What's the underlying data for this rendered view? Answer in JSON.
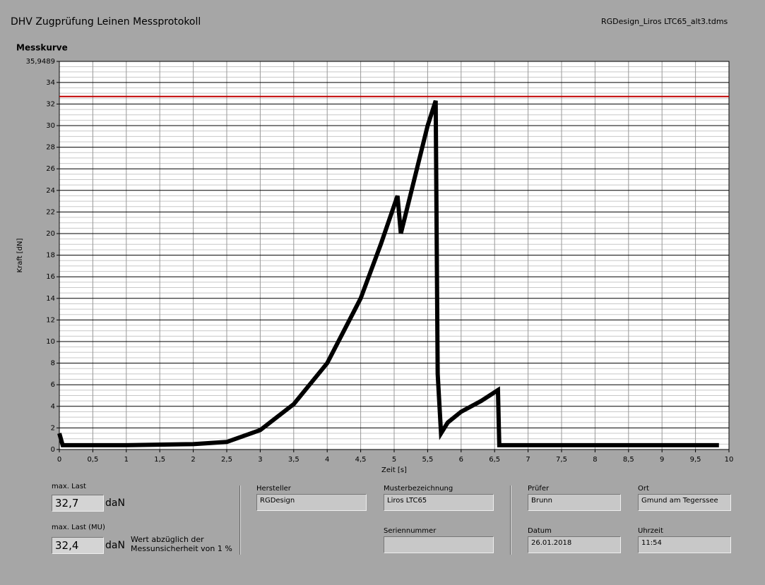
{
  "header": {
    "title": "DHV Zugprüfung Leinen Messprotokoll",
    "filename": "RGDesign_Liros LTC65_alt3.tdms"
  },
  "chart_data": {
    "type": "line",
    "title": "Messkurve",
    "x_label": "Zeit [s]",
    "y_label": "Kraft [dN]",
    "xlim": [
      0,
      10
    ],
    "ylim": [
      0,
      35.9489
    ],
    "xticks": [
      0,
      {
        "value": 0.5,
        "label": "0,5"
      },
      1,
      {
        "value": 1.5,
        "label": "1,5"
      },
      2,
      {
        "value": 2.5,
        "label": "2,5"
      },
      3,
      {
        "value": 3.5,
        "label": "3,5"
      },
      4,
      {
        "value": 4.5,
        "label": "4,5"
      },
      5,
      {
        "value": 5.5,
        "label": "5,5"
      },
      6,
      {
        "value": 6.5,
        "label": "6,5"
      },
      7,
      {
        "value": 7.5,
        "label": "7,5"
      },
      8,
      {
        "value": 8.5,
        "label": "8,5"
      },
      9,
      {
        "value": 9.5,
        "label": "9,5"
      },
      10
    ],
    "yticks": [
      0,
      2,
      4,
      6,
      8,
      10,
      12,
      14,
      16,
      18,
      20,
      22,
      24,
      26,
      28,
      30,
      32,
      34,
      {
        "value": 35.9489,
        "label": "35,9489"
      }
    ],
    "grid": true,
    "color": "#000000",
    "x": [
      0,
      0.05,
      1,
      2,
      2.5,
      3,
      3.5,
      4,
      4.5,
      4.8,
      5.05,
      5.1,
      5.3,
      5.5,
      5.62,
      5.65,
      5.7,
      5.8,
      6,
      6.3,
      6.55,
      6.57,
      7,
      8,
      9,
      9.85
    ],
    "values": [
      1.5,
      0.4,
      0.4,
      0.5,
      0.7,
      1.8,
      4.2,
      8,
      14,
      19,
      23.5,
      20,
      25,
      30,
      32.3,
      7,
      1.5,
      2.5,
      3.5,
      4.5,
      5.5,
      0.4,
      0.4,
      0.4,
      0.4,
      0.4
    ],
    "reference_line": {
      "value": 32.7,
      "color": "#c00000"
    }
  },
  "results": {
    "max_load": {
      "label": "max. Last",
      "value": "32,7",
      "unit": "daN"
    },
    "max_load_mu": {
      "label": "max. Last (MU)",
      "value": "32,4",
      "unit": "daN",
      "note": [
        "Wert abzüglich der",
        "Messunsicherheit von 1 %"
      ]
    }
  },
  "fields": [
    {
      "label": "Hersteller",
      "value": "RGDesign"
    },
    {
      "label": "Musterbezeichnung",
      "value": "Liros LTC65"
    },
    {
      "label": "Seriennummer"
    },
    {
      "label": "Prüfer",
      "value": "Brunn"
    },
    {
      "label": "Datum",
      "value": "26.01.2018"
    },
    {
      "label": "Ort",
      "value": "Gmund am Tegerssee"
    },
    {
      "label": "Uhrzeit",
      "value": "11:54"
    }
  ]
}
